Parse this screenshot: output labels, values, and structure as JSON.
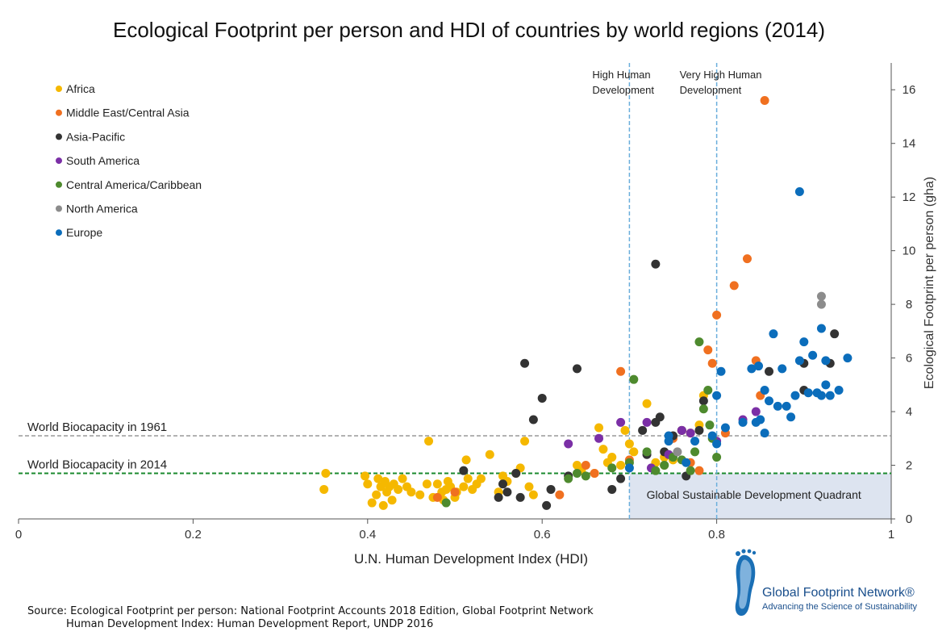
{
  "title": "Ecological Footprint per person and HDI of countries by world regions (2014)",
  "source_line1": "Source: Ecological Footprint per person: National Footprint Accounts 2018 Edition, Global Footprint Network",
  "source_line2": "Human Development Index: Human Development Report, UNDP 2016",
  "logo": {
    "name": "Global Footprint Network®",
    "tagline": "Advancing the Science of Sustainability"
  },
  "chart_data": {
    "type": "scatter",
    "xlabel": "U.N. Human Development Index  (HDI)",
    "ylabel": "Ecological Footprint per person (gha)",
    "xlim": [
      0,
      1
    ],
    "ylim": [
      0,
      17
    ],
    "x_ticks": [
      "0",
      "0.2",
      "0.4",
      "0.6",
      "0.8",
      "1"
    ],
    "y_ticks": [
      "0",
      "2",
      "4",
      "6",
      "8",
      "10",
      "12",
      "14",
      "16"
    ],
    "legend_position": "top-left",
    "reference_lines": [
      {
        "label": "World Biocapacity in 1961",
        "y": 3.1,
        "color": "#999999"
      },
      {
        "label": "World Biocapacity in 2014",
        "y": 1.7,
        "color": "#1a8a2e"
      }
    ],
    "threshold_lines": [
      {
        "label_line1": "High Human",
        "label_line2": "Development",
        "x": 0.7
      },
      {
        "label_line1": "Very High Human",
        "label_line2": "Development",
        "x": 0.8
      }
    ],
    "quadrant": {
      "label": "Global Sustainable Development Quadrant",
      "x": [
        0.7,
        1
      ],
      "y": [
        0,
        1.7
      ],
      "color": "#dde4f0"
    },
    "series": [
      {
        "name": "Africa",
        "color": "#f5b800",
        "points": [
          [
            0.35,
            1.1
          ],
          [
            0.352,
            1.7
          ],
          [
            0.397,
            1.6
          ],
          [
            0.4,
            1.3
          ],
          [
            0.405,
            0.6
          ],
          [
            0.41,
            0.9
          ],
          [
            0.412,
            1.5
          ],
          [
            0.415,
            1.2
          ],
          [
            0.418,
            0.5
          ],
          [
            0.42,
            1.4
          ],
          [
            0.422,
            1.0
          ],
          [
            0.425,
            1.2
          ],
          [
            0.428,
            0.7
          ],
          [
            0.43,
            1.3
          ],
          [
            0.435,
            1.1
          ],
          [
            0.44,
            1.5
          ],
          [
            0.445,
            1.2
          ],
          [
            0.45,
            1.0
          ],
          [
            0.46,
            0.9
          ],
          [
            0.468,
            1.3
          ],
          [
            0.47,
            2.9
          ],
          [
            0.475,
            0.8
          ],
          [
            0.48,
            1.3
          ],
          [
            0.485,
            1.0
          ],
          [
            0.487,
            0.7
          ],
          [
            0.49,
            1.1
          ],
          [
            0.492,
            1.4
          ],
          [
            0.495,
            1.2
          ],
          [
            0.5,
            0.8
          ],
          [
            0.502,
            1.0
          ],
          [
            0.51,
            1.2
          ],
          [
            0.513,
            2.2
          ],
          [
            0.515,
            1.5
          ],
          [
            0.52,
            1.1
          ],
          [
            0.525,
            1.3
          ],
          [
            0.53,
            1.5
          ],
          [
            0.54,
            2.4
          ],
          [
            0.55,
            1.0
          ],
          [
            0.555,
            1.6
          ],
          [
            0.56,
            1.4
          ],
          [
            0.57,
            1.7
          ],
          [
            0.575,
            1.9
          ],
          [
            0.58,
            2.9
          ],
          [
            0.585,
            1.2
          ],
          [
            0.59,
            0.9
          ],
          [
            0.64,
            2.0
          ],
          [
            0.645,
            1.8
          ],
          [
            0.66,
            1.7
          ],
          [
            0.665,
            3.4
          ],
          [
            0.67,
            2.6
          ],
          [
            0.675,
            2.1
          ],
          [
            0.68,
            2.3
          ],
          [
            0.69,
            2.0
          ],
          [
            0.695,
            3.3
          ],
          [
            0.7,
            2.8
          ],
          [
            0.705,
            2.5
          ],
          [
            0.72,
            4.3
          ],
          [
            0.73,
            2.1
          ],
          [
            0.74,
            2.3
          ],
          [
            0.75,
            2.2
          ],
          [
            0.77,
            3.2
          ],
          [
            0.78,
            3.5
          ],
          [
            0.785,
            4.6
          ]
        ]
      },
      {
        "name": "Middle East/Central Asia",
        "color": "#f07020",
        "points": [
          [
            0.48,
            0.8
          ],
          [
            0.5,
            1.0
          ],
          [
            0.62,
            0.9
          ],
          [
            0.65,
            2.0
          ],
          [
            0.66,
            1.7
          ],
          [
            0.69,
            5.5
          ],
          [
            0.7,
            2.2
          ],
          [
            0.74,
            2.0
          ],
          [
            0.75,
            3.0
          ],
          [
            0.76,
            3.3
          ],
          [
            0.77,
            2.1
          ],
          [
            0.78,
            1.8
          ],
          [
            0.79,
            6.3
          ],
          [
            0.795,
            5.8
          ],
          [
            0.8,
            7.6
          ],
          [
            0.81,
            3.2
          ],
          [
            0.82,
            8.7
          ],
          [
            0.835,
            9.7
          ],
          [
            0.845,
            5.9
          ],
          [
            0.85,
            4.6
          ],
          [
            0.855,
            15.6
          ]
        ]
      },
      {
        "name": "Asia-Pacific",
        "color": "#333333",
        "points": [
          [
            0.51,
            1.8
          ],
          [
            0.55,
            0.8
          ],
          [
            0.555,
            1.3
          ],
          [
            0.56,
            1.0
          ],
          [
            0.57,
            1.7
          ],
          [
            0.575,
            0.8
          ],
          [
            0.58,
            5.8
          ],
          [
            0.59,
            3.7
          ],
          [
            0.6,
            4.5
          ],
          [
            0.605,
            0.5
          ],
          [
            0.61,
            1.1
          ],
          [
            0.63,
            1.6
          ],
          [
            0.64,
            5.6
          ],
          [
            0.68,
            1.1
          ],
          [
            0.69,
            1.5
          ],
          [
            0.715,
            3.3
          ],
          [
            0.72,
            2.4
          ],
          [
            0.73,
            9.5
          ],
          [
            0.73,
            3.6
          ],
          [
            0.735,
            3.8
          ],
          [
            0.74,
            2.5
          ],
          [
            0.75,
            3.1
          ],
          [
            0.76,
            3.3
          ],
          [
            0.765,
            1.6
          ],
          [
            0.78,
            3.3
          ],
          [
            0.785,
            4.4
          ],
          [
            0.86,
            5.5
          ],
          [
            0.9,
            5.8
          ],
          [
            0.9,
            4.8
          ],
          [
            0.93,
            5.8
          ],
          [
            0.935,
            6.9
          ]
        ]
      },
      {
        "name": "South America",
        "color": "#7b2fa6",
        "points": [
          [
            0.63,
            2.8
          ],
          [
            0.665,
            3.0
          ],
          [
            0.69,
            3.6
          ],
          [
            0.72,
            3.6
          ],
          [
            0.725,
            1.9
          ],
          [
            0.745,
            2.4
          ],
          [
            0.76,
            3.3
          ],
          [
            0.77,
            3.2
          ],
          [
            0.8,
            2.9
          ],
          [
            0.83,
            3.7
          ],
          [
            0.845,
            4.0
          ]
        ]
      },
      {
        "name": "Central America/Caribbean",
        "color": "#4e8a2e",
        "points": [
          [
            0.49,
            0.6
          ],
          [
            0.63,
            1.5
          ],
          [
            0.64,
            1.7
          ],
          [
            0.65,
            1.6
          ],
          [
            0.68,
            1.9
          ],
          [
            0.7,
            2.1
          ],
          [
            0.705,
            5.2
          ],
          [
            0.72,
            2.5
          ],
          [
            0.73,
            1.8
          ],
          [
            0.74,
            2.0
          ],
          [
            0.75,
            2.3
          ],
          [
            0.76,
            2.2
          ],
          [
            0.77,
            1.8
          ],
          [
            0.775,
            2.5
          ],
          [
            0.78,
            6.6
          ],
          [
            0.785,
            4.1
          ],
          [
            0.79,
            4.8
          ],
          [
            0.792,
            3.5
          ],
          [
            0.795,
            3.0
          ],
          [
            0.8,
            2.3
          ]
        ]
      },
      {
        "name": "North America",
        "color": "#8c8c8c",
        "points": [
          [
            0.755,
            2.5
          ],
          [
            0.92,
            8.3
          ],
          [
            0.92,
            8.0
          ]
        ]
      },
      {
        "name": "Europe",
        "color": "#0b6dbb",
        "points": [
          [
            0.7,
            1.9
          ],
          [
            0.745,
            3.1
          ],
          [
            0.745,
            2.9
          ],
          [
            0.765,
            2.1
          ],
          [
            0.775,
            2.9
          ],
          [
            0.795,
            3.1
          ],
          [
            0.8,
            2.8
          ],
          [
            0.8,
            4.6
          ],
          [
            0.805,
            5.5
          ],
          [
            0.81,
            3.4
          ],
          [
            0.83,
            3.6
          ],
          [
            0.84,
            5.6
          ],
          [
            0.845,
            3.6
          ],
          [
            0.848,
            5.7
          ],
          [
            0.85,
            3.7
          ],
          [
            0.855,
            4.8
          ],
          [
            0.855,
            3.2
          ],
          [
            0.86,
            4.4
          ],
          [
            0.865,
            6.9
          ],
          [
            0.87,
            4.2
          ],
          [
            0.875,
            5.6
          ],
          [
            0.88,
            4.2
          ],
          [
            0.885,
            3.8
          ],
          [
            0.89,
            4.6
          ],
          [
            0.895,
            5.9
          ],
          [
            0.895,
            12.2
          ],
          [
            0.9,
            6.6
          ],
          [
            0.905,
            4.7
          ],
          [
            0.91,
            6.1
          ],
          [
            0.915,
            4.7
          ],
          [
            0.92,
            4.6
          ],
          [
            0.92,
            7.1
          ],
          [
            0.925,
            5.9
          ],
          [
            0.925,
            5.0
          ],
          [
            0.93,
            4.6
          ],
          [
            0.94,
            4.8
          ],
          [
            0.95,
            6.0
          ]
        ]
      }
    ]
  }
}
